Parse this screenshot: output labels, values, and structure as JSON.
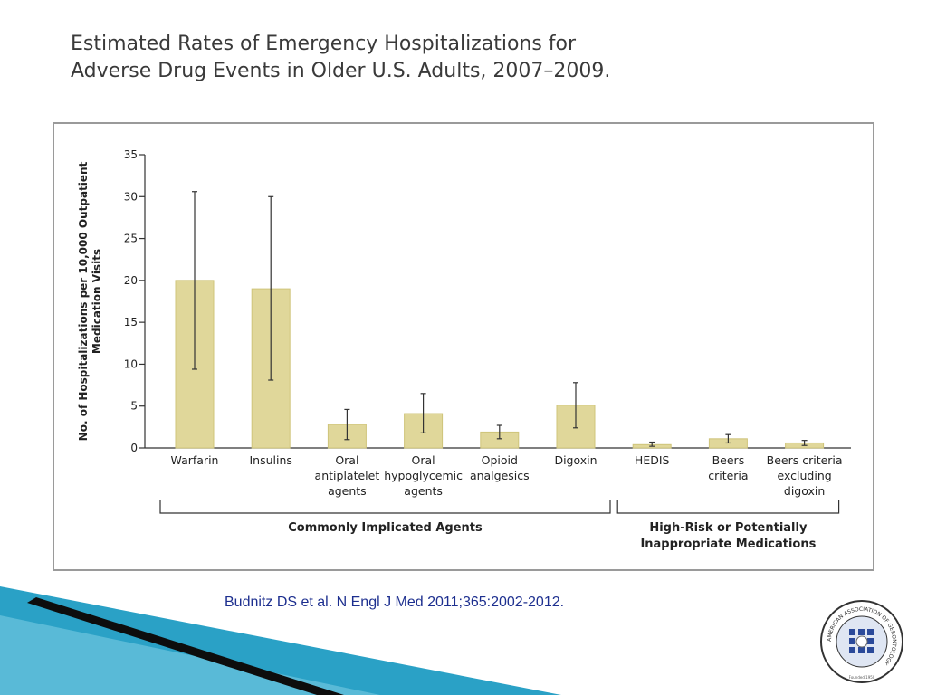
{
  "slide": {
    "title_line1": "Estimated Rates of Emergency Hospitalizations for",
    "title_line2": "Adverse Drug Events in Older U.S. Adults, 2007–2009.",
    "citation": "Budnitz DS et al. N Engl J Med 2011;365:2002-2012."
  },
  "colors": {
    "bar_fill": "#e0d79a",
    "bar_stroke": "#cfc47a",
    "axis": "#333333",
    "text": "#222222",
    "citation": "#1d2f8f",
    "deco_blue": "#2aa1c6",
    "deco_dark": "#0d0d0d"
  },
  "logo": {
    "ring_text": "AMERICAN ASSOCIATION OF GERONTOLOGY",
    "founded": "Founded 1950"
  },
  "chart_data": {
    "type": "bar",
    "ylabel_line1": "No. of Hospitalizations per 10,000 Outpatient",
    "ylabel_line2": "Medication Visits",
    "ylim": [
      0,
      35
    ],
    "yticks": [
      "0",
      "5",
      "10",
      "15",
      "20",
      "25",
      "30",
      "35"
    ],
    "categories": [
      [
        "Warfarin"
      ],
      [
        "Insulins"
      ],
      [
        "Oral",
        "antiplatelet",
        "agents"
      ],
      [
        "Oral",
        "hypoglycemic",
        "agents"
      ],
      [
        "Opioid",
        "analgesics"
      ],
      [
        "Digoxin"
      ],
      [
        "HEDIS"
      ],
      [
        "Beers",
        "criteria"
      ],
      [
        "Beers criteria",
        "excluding",
        "digoxin"
      ]
    ],
    "values": [
      20.0,
      19.0,
      2.8,
      4.1,
      1.9,
      5.1,
      0.4,
      1.1,
      0.6
    ],
    "error_low": [
      9.4,
      8.1,
      1.0,
      1.8,
      1.1,
      2.4,
      0.2,
      0.6,
      0.3
    ],
    "error_high": [
      30.6,
      30.0,
      4.6,
      6.5,
      2.7,
      7.8,
      0.7,
      1.6,
      0.9
    ],
    "groups": [
      {
        "label": [
          "Commonly Implicated Agents"
        ],
        "start": 0,
        "end": 5
      },
      {
        "label": [
          "High-Risk or Potentially",
          "Inappropriate Medications"
        ],
        "start": 6,
        "end": 8
      }
    ]
  }
}
